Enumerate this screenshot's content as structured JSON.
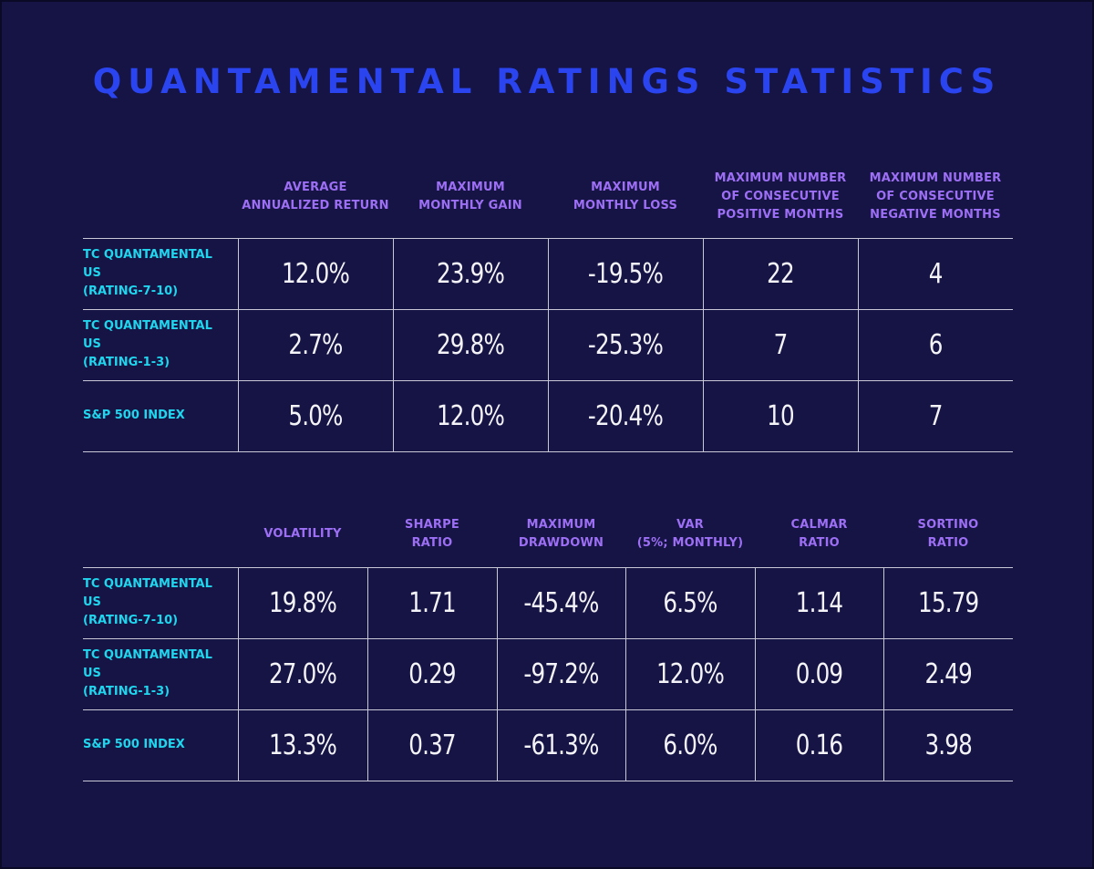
{
  "title": "QUANTAMENTAL RATINGS STATISTICS",
  "table1": {
    "headers": [
      "AVERAGE\nANNUALIZED RETURN",
      "MAXIMUM\nMONTHLY GAIN",
      "MAXIMUM\nMONTHLY LOSS",
      "MAXIMUM NUMBER\nOF CONSECUTIVE\nPOSITIVE MONTHS",
      "MAXIMUM NUMBER\nOF CONSECUTIVE\nNEGATIVE MONTHS"
    ],
    "rows": [
      {
        "label": "TC QUANTAMENTAL US\n(RATING-7-10)",
        "values": [
          "12.0%",
          "23.9%",
          "-19.5%",
          "22",
          "4"
        ]
      },
      {
        "label": "TC QUANTAMENTAL US\n(RATING-1-3)",
        "values": [
          "2.7%",
          "29.8%",
          "-25.3%",
          "7",
          "6"
        ]
      },
      {
        "label": "S&P 500 INDEX",
        "values": [
          "5.0%",
          "12.0%",
          "-20.4%",
          "10",
          "7"
        ]
      }
    ]
  },
  "table2": {
    "headers": [
      "VOLATILITY",
      "SHARPE\nRATIO",
      "MAXIMUM\nDRAWDOWN",
      "VAR\n(5%; MONTHLY)",
      "CALMAR\nRATIO",
      "SORTINO\nRATIO"
    ],
    "rows": [
      {
        "label": "TC QUANTAMENTAL US\n(RATING-7-10)",
        "values": [
          "19.8%",
          "1.71",
          "-45.4%",
          "6.5%",
          "1.14",
          "15.79"
        ]
      },
      {
        "label": "TC QUANTAMENTAL US\n(RATING-1-3)",
        "values": [
          "27.0%",
          "0.29",
          "-97.2%",
          "12.0%",
          "0.09",
          "2.49"
        ]
      },
      {
        "label": "S&P 500 INDEX",
        "values": [
          "13.3%",
          "0.37",
          "-61.3%",
          "6.0%",
          "0.16",
          "3.98"
        ]
      }
    ]
  },
  "colors": {
    "background": "#161444",
    "title": "#2a45f0",
    "header_text": "#9d6ff5",
    "row_label": "#1fd6ee",
    "value_text": "#f4f4f8",
    "grid_lines": "#c9c8d6"
  }
}
